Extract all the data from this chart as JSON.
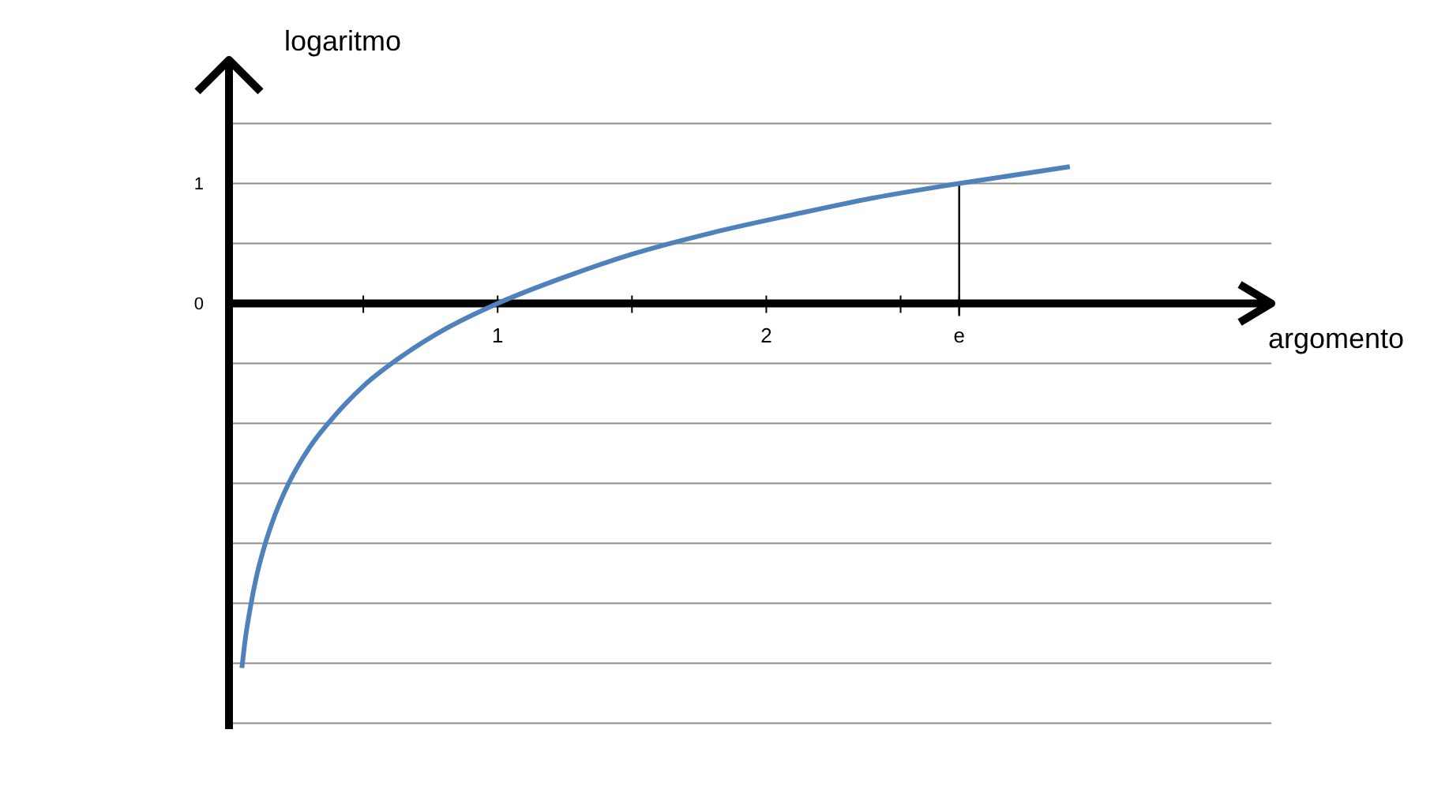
{
  "chart_data": {
    "type": "line",
    "xlabel": "argomento",
    "ylabel": "logaritmo",
    "x": [
      0.048,
      0.06,
      0.08,
      0.1,
      0.13,
      0.17,
      0.22,
      0.3,
      0.4,
      0.5,
      0.65,
      0.8,
      1,
      1.25,
      1.5,
      1.8,
      2.1,
      2.4,
      2.718,
      3.13
    ],
    "series": [
      {
        "color": "#4f81bd",
        "values": [
          -3.04,
          -2.81,
          -2.53,
          -2.3,
          -2.04,
          -1.77,
          -1.51,
          -1.2,
          -0.92,
          -0.69,
          -0.43,
          -0.22,
          0,
          0.22,
          0.41,
          0.59,
          0.74,
          0.88,
          1,
          1.14
        ]
      }
    ],
    "xlim": [
      0,
      3.88
    ],
    "ylim": [
      -3.55,
      2.03
    ],
    "xticks": [
      {
        "value": 0.5,
        "label": null
      },
      1,
      {
        "value": 1.5,
        "label": null
      },
      2,
      {
        "value": 2.5,
        "label": null
      },
      {
        "value": 2.718,
        "label": "e"
      }
    ],
    "yticks": [
      {
        "value": -3.5,
        "label": null
      },
      {
        "value": -3,
        "label": null
      },
      {
        "value": -2.5,
        "label": null
      },
      {
        "value": -2,
        "label": null
      },
      {
        "value": -1.5,
        "label": null
      },
      {
        "value": -1,
        "label": null
      },
      {
        "value": -0.5,
        "label": null
      },
      0,
      1,
      {
        "value": 1.5,
        "label": null
      },
      {
        "value": 0.5,
        "label": null
      }
    ],
    "ref_lines": [
      {
        "axis": "x",
        "value": 2.718,
        "color": "#000000"
      }
    ],
    "grid": "y",
    "marker": "none",
    "line_style": "solid"
  }
}
